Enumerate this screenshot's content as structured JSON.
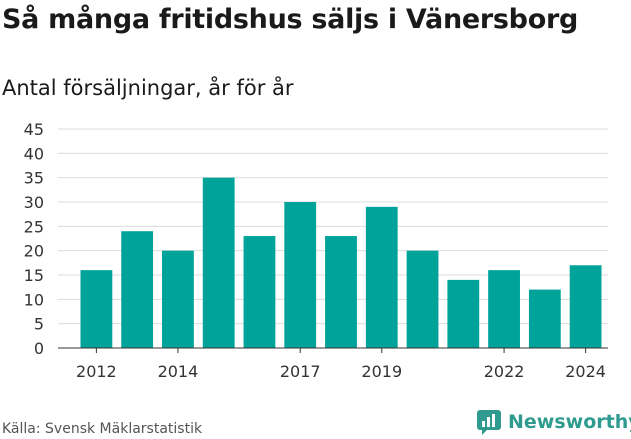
{
  "header": {
    "title": "Så många fritidshus säljs i Vänersborg",
    "subtitle": "Antal försäljningar, år för år"
  },
  "footer": {
    "source": "Källa: Svensk Mäklarstatistik",
    "brand": "Newsworthy"
  },
  "colors": {
    "bar": "#00a39a",
    "grid": "#dcdcdc",
    "brand": "#2e9b8e"
  },
  "chart_data": {
    "type": "bar",
    "categories": [
      "2012",
      "2013",
      "2014",
      "2015",
      "2016",
      "2017",
      "2018",
      "2019",
      "2020",
      "2021",
      "2022",
      "2023",
      "2024"
    ],
    "values": [
      16,
      24,
      20,
      35,
      23,
      30,
      23,
      29,
      20,
      14,
      16,
      12,
      17
    ],
    "x_tick_labels": [
      "2012",
      "",
      "2014",
      "",
      "",
      "2017",
      "",
      "2019",
      "",
      "",
      "2022",
      "",
      "2024"
    ],
    "y_ticks": [
      0,
      5,
      10,
      15,
      20,
      25,
      30,
      35,
      40,
      45
    ],
    "ylim": [
      0,
      45
    ],
    "grid": true,
    "title": "Så många fritidshus säljs i Vänersborg",
    "subtitle": "Antal försäljningar, år för år"
  }
}
